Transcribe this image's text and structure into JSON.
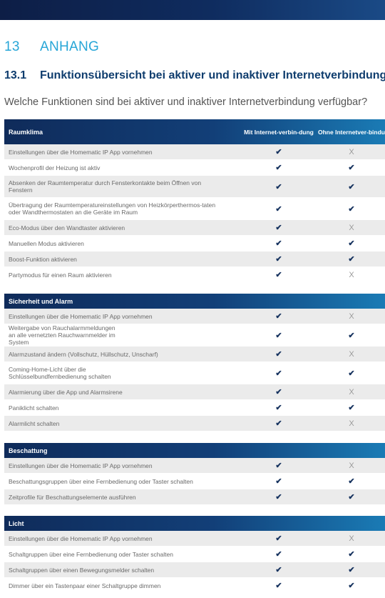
{
  "chapter": {
    "number": "13",
    "title": "ANHANG"
  },
  "section": {
    "number": "13.1",
    "title": "Funktionsübersicht bei aktiver und inaktiver Internetverbindung"
  },
  "question": "Welche Funktionen sind bei aktiver und inaktiver Internetverbindung verfügbar?",
  "symbols": {
    "yes": "✔",
    "no": "X"
  },
  "colors": {
    "header_dark": "#0f2b5a",
    "header_light": "#1a7bb5",
    "accent_title": "#27a6d7",
    "section_title": "#0f3d6e",
    "row_shade": "#ebebeb",
    "check": "#17335f"
  },
  "tables": [
    {
      "category": "Raumklima",
      "col_online": "Mit Internet-verbin-dung",
      "col_offline": "Ohne Internetver-bindung",
      "rows": [
        {
          "label": "Einstellungen über die Homematic IP App vornehmen",
          "online": "✔",
          "offline": "X"
        },
        {
          "label": "Wochenprofil der Heizung ist aktiv",
          "online": "✔",
          "offline": "✔"
        },
        {
          "label": "Absenken der Raumtemperatur durch Fensterkontakte beim Öffnen von Fenstern",
          "online": "✔",
          "offline": "✔"
        },
        {
          "label": "Übertragung der Raumtemperatureinstellungen von Heizkörperthermos-taten oder Wandthermostaten an die Geräte im Raum",
          "online": "✔",
          "offline": "✔"
        },
        {
          "label": "Eco-Modus über den Wandtaster aktivieren",
          "online": "✔",
          "offline": "X"
        },
        {
          "label": "Manuellen Modus aktivieren",
          "online": "✔",
          "offline": "✔"
        },
        {
          "label": "Boost-Funktion aktivieren",
          "online": "✔",
          "offline": "✔"
        },
        {
          "label": "Partymodus für einen Raum aktivieren",
          "online": "✔",
          "offline": "X"
        }
      ]
    },
    {
      "category": "Sicherheit und Alarm",
      "rows": [
        {
          "label": "Einstellungen über die Homematic IP App vornehmen",
          "online": "✔",
          "offline": "X"
        },
        {
          "label": "Weitergabe von Rauchalarmmeldungen an alle vernetzten Rauchwarnmelder im System",
          "online": "✔",
          "offline": "✔"
        },
        {
          "label": "Alarmzustand ändern (Vollschutz, Hüllschutz, Unscharf)",
          "online": "✔",
          "offline": "X"
        },
        {
          "label": "Coming-Home-Licht über die Schlüsselbundfernbedienung schalten",
          "online": "✔",
          "offline": "✔"
        },
        {
          "label": "Alarmierung über die App und Alarmsirene",
          "online": "✔",
          "offline": "X"
        },
        {
          "label": "Paniklicht schalten",
          "online": "✔",
          "offline": "✔"
        },
        {
          "label": "Alarmlicht schalten",
          "online": "✔",
          "offline": "X"
        }
      ]
    },
    {
      "category": "Beschattung",
      "rows": [
        {
          "label": "Einstellungen über die Homematic IP App vornehmen",
          "online": "✔",
          "offline": "X"
        },
        {
          "label": "Beschattungsgruppen über eine Fernbedienung oder Taster schalten",
          "online": "✔",
          "offline": "✔"
        },
        {
          "label": "Zeitprofile für Beschattungselemente ausführen",
          "online": "✔",
          "offline": "✔"
        }
      ]
    },
    {
      "category": "Licht",
      "rows": [
        {
          "label": "Einstellungen über die Homematic IP App vornehmen",
          "online": "✔",
          "offline": "X"
        },
        {
          "label": "Schaltgruppen über eine Fernbedienung oder Taster schalten",
          "online": "✔",
          "offline": "✔"
        },
        {
          "label": "Schaltgruppen über einen Bewegungsmelder schalten",
          "online": "✔",
          "offline": "✔"
        },
        {
          "label": "Dimmer über ein Tastenpaar einer Schaltgruppe dimmen",
          "online": "✔",
          "offline": "✔"
        }
      ]
    }
  ]
}
